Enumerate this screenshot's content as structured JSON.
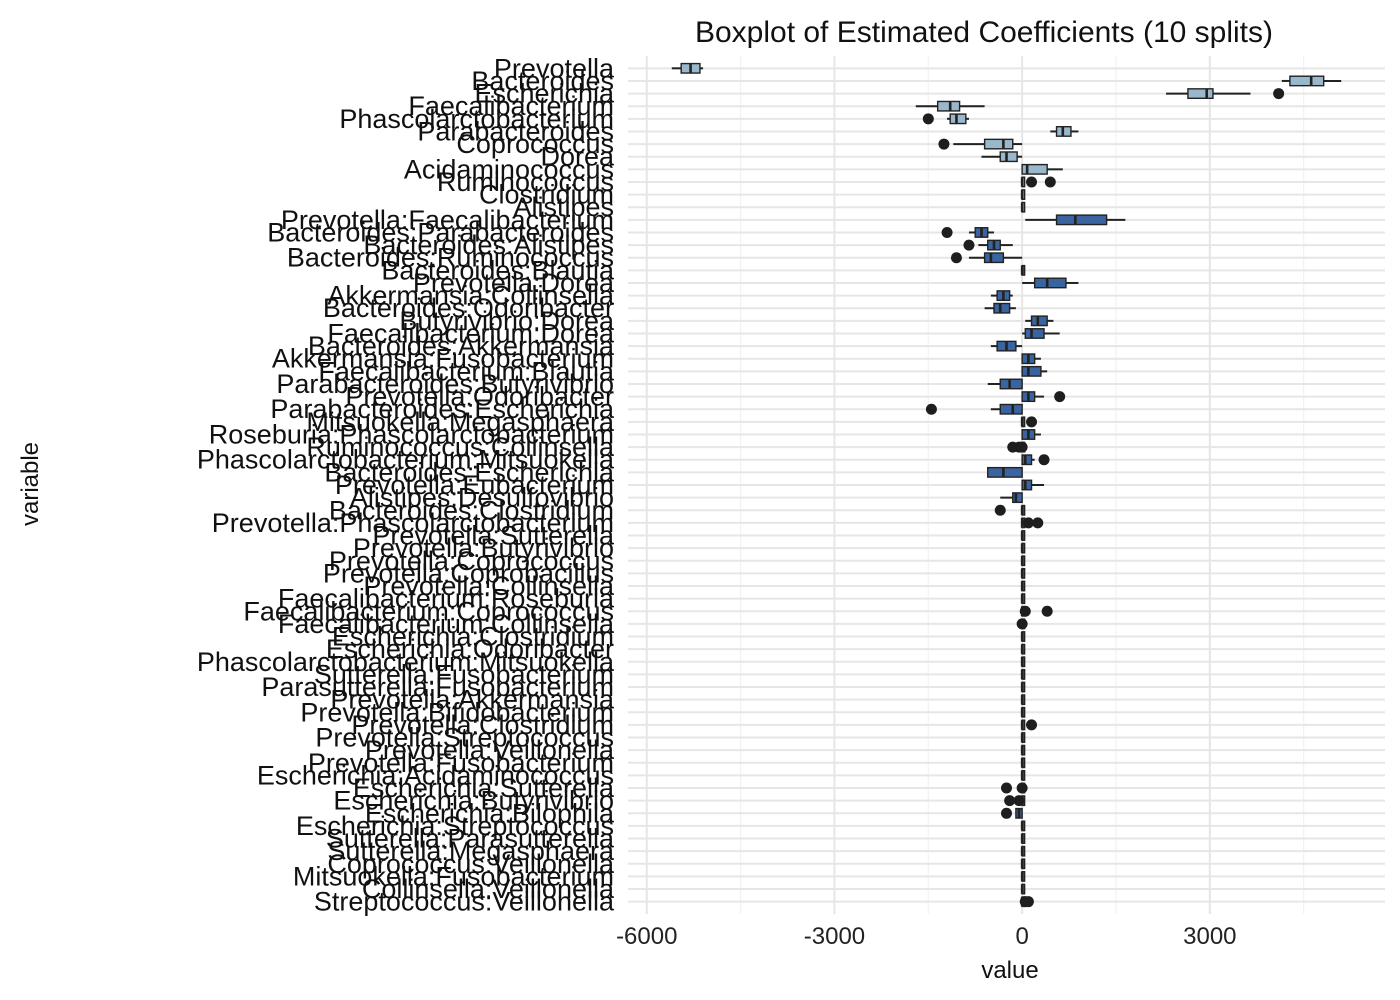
{
  "chart_data": {
    "type": "boxplot",
    "orientation": "horizontal",
    "title": "Boxplot of Estimated Coefficients (10 splits)",
    "xlabel": "value",
    "ylabel": "variable",
    "xlim": [
      -6300,
      5800
    ],
    "xticks": [
      -6000,
      -3000,
      0,
      3000
    ],
    "xtick_labels": [
      "-6000",
      "-3000",
      "0",
      "3000"
    ],
    "grid": true,
    "legend": "none",
    "colors": {
      "dark_box": "#3a64a0",
      "light_box": "#9ab8cc",
      "outline": "#222222"
    },
    "series": [
      {
        "name": "Prevotella",
        "q1": -5450,
        "median": -5300,
        "q3": -5150,
        "whisker_low": -5600,
        "whisker_high": -5100,
        "outliers": [],
        "fill": "light"
      },
      {
        "name": "Bacteroides",
        "q1": 4280,
        "median": 4620,
        "q3": 4820,
        "whisker_low": 4150,
        "whisker_high": 5100,
        "outliers": [],
        "fill": "light"
      },
      {
        "name": "Escherichia",
        "q1": 2650,
        "median": 2950,
        "q3": 3050,
        "whisker_low": 2300,
        "whisker_high": 3650,
        "outliers": [
          4100
        ],
        "fill": "light"
      },
      {
        "name": "Faecalibacterium",
        "q1": -1350,
        "median": -1150,
        "q3": -1000,
        "whisker_low": -1700,
        "whisker_high": -600,
        "outliers": [],
        "fill": "light"
      },
      {
        "name": "Phascolarctobacterium",
        "q1": -1150,
        "median": -1050,
        "q3": -900,
        "whisker_low": -1200,
        "whisker_high": -850,
        "outliers": [
          -1500
        ],
        "fill": "light"
      },
      {
        "name": "Parabacteroides",
        "q1": 550,
        "median": 650,
        "q3": 780,
        "whisker_low": 450,
        "whisker_high": 900,
        "outliers": [],
        "fill": "light"
      },
      {
        "name": "Coprococcus",
        "q1": -600,
        "median": -300,
        "q3": -150,
        "whisker_low": -1100,
        "whisker_high": 0,
        "outliers": [
          -1250
        ],
        "fill": "light"
      },
      {
        "name": "Dorea",
        "q1": -350,
        "median": -250,
        "q3": -80,
        "whisker_low": -650,
        "whisker_high": 0,
        "outliers": [],
        "fill": "light"
      },
      {
        "name": "Acidaminococcus",
        "q1": 0,
        "median": 80,
        "q3": 400,
        "whisker_low": 0,
        "whisker_high": 650,
        "outliers": [],
        "fill": "light"
      },
      {
        "name": "Ruminococcus",
        "q1": 0,
        "median": 0,
        "q3": 0,
        "whisker_low": 0,
        "whisker_high": 0,
        "outliers": [
          150,
          450
        ],
        "fill": "light"
      },
      {
        "name": "Clostridium",
        "q1": 0,
        "median": 0,
        "q3": 0,
        "whisker_low": 0,
        "whisker_high": 0,
        "outliers": [],
        "fill": "light"
      },
      {
        "name": "Alistipes",
        "q1": 0,
        "median": 0,
        "q3": 0,
        "whisker_low": 0,
        "whisker_high": 0,
        "outliers": [],
        "fill": "light"
      },
      {
        "name": "Prevotella:Faecalibacterium",
        "q1": 550,
        "median": 850,
        "q3": 1350,
        "whisker_low": 50,
        "whisker_high": 1650,
        "outliers": [],
        "fill": "dark"
      },
      {
        "name": "Bacteroides:Parabacteroides",
        "q1": -750,
        "median": -650,
        "q3": -550,
        "whisker_low": -850,
        "whisker_high": -450,
        "outliers": [
          -1200
        ],
        "fill": "dark"
      },
      {
        "name": "Bacteroides:Alistipes",
        "q1": -550,
        "median": -450,
        "q3": -350,
        "whisker_low": -700,
        "whisker_high": -150,
        "outliers": [
          -850
        ],
        "fill": "dark"
      },
      {
        "name": "Bacteroides:Ruminococcus",
        "q1": -600,
        "median": -500,
        "q3": -300,
        "whisker_low": -850,
        "whisker_high": 0,
        "outliers": [
          -1050
        ],
        "fill": "dark"
      },
      {
        "name": "Bacteroides:Blautia",
        "q1": 0,
        "median": 0,
        "q3": 0,
        "whisker_low": 0,
        "whisker_high": 0,
        "outliers": [],
        "fill": "dark"
      },
      {
        "name": "Prevotella:Dorea",
        "q1": 200,
        "median": 400,
        "q3": 700,
        "whisker_low": 0,
        "whisker_high": 900,
        "outliers": [],
        "fill": "dark"
      },
      {
        "name": "Akkermansia:Collinsella",
        "q1": -400,
        "median": -300,
        "q3": -200,
        "whisker_low": -500,
        "whisker_high": -150,
        "outliers": [],
        "fill": "dark"
      },
      {
        "name": "Bacteroides:Odoribacter",
        "q1": -450,
        "median": -350,
        "q3": -200,
        "whisker_low": -600,
        "whisker_high": -100,
        "outliers": [],
        "fill": "dark"
      },
      {
        "name": "Butyrivibrio:Dorea",
        "q1": 150,
        "median": 250,
        "q3": 400,
        "whisker_low": 50,
        "whisker_high": 500,
        "outliers": [],
        "fill": "dark"
      },
      {
        "name": "Faecalibacterium:Dorea",
        "q1": 50,
        "median": 150,
        "q3": 350,
        "whisker_low": 0,
        "whisker_high": 600,
        "outliers": [],
        "fill": "dark"
      },
      {
        "name": "Bacteroides:Akkermansia",
        "q1": -400,
        "median": -250,
        "q3": -100,
        "whisker_low": -500,
        "whisker_high": 0,
        "outliers": [],
        "fill": "dark"
      },
      {
        "name": "Akkermansia:Fusobacterium",
        "q1": 0,
        "median": 100,
        "q3": 200,
        "whisker_low": 0,
        "whisker_high": 300,
        "outliers": [],
        "fill": "dark"
      },
      {
        "name": "Faecalibacterium:Blautia",
        "q1": 0,
        "median": 100,
        "q3": 300,
        "whisker_low": 0,
        "whisker_high": 400,
        "outliers": [],
        "fill": "dark"
      },
      {
        "name": "Parabacteroides:Butyrivibrio",
        "q1": -350,
        "median": -200,
        "q3": 0,
        "whisker_low": -550,
        "whisker_high": 0,
        "outliers": [],
        "fill": "dark"
      },
      {
        "name": "Prevotella:Odoribacter",
        "q1": 0,
        "median": 100,
        "q3": 200,
        "whisker_low": 0,
        "whisker_high": 350,
        "outliers": [
          600
        ],
        "fill": "dark"
      },
      {
        "name": "Parabacteroides:Escherichia",
        "q1": -350,
        "median": -150,
        "q3": 0,
        "whisker_low": -500,
        "whisker_high": 0,
        "outliers": [
          -1450
        ],
        "fill": "dark"
      },
      {
        "name": "Mitsuokella:Megasphaera",
        "q1": 0,
        "median": 0,
        "q3": 0,
        "whisker_low": 0,
        "whisker_high": 0,
        "outliers": [
          150
        ],
        "fill": "dark"
      },
      {
        "name": "Roseburia:Phascolarctobacterium",
        "q1": 0,
        "median": 100,
        "q3": 200,
        "whisker_low": 0,
        "whisker_high": 300,
        "outliers": [],
        "fill": "dark"
      },
      {
        "name": "Ruminococcus:Collinsella",
        "q1": 0,
        "median": 0,
        "q3": 0,
        "whisker_low": 0,
        "whisker_high": 0,
        "outliers": [
          -150,
          -50,
          0
        ],
        "fill": "dark"
      },
      {
        "name": "Phascolarctobacterium:Mitsuokella",
        "q1": 0,
        "median": 50,
        "q3": 150,
        "whisker_low": 0,
        "whisker_high": 200,
        "outliers": [
          350
        ],
        "fill": "dark"
      },
      {
        "name": "Bacteroides:Escherichia",
        "q1": -550,
        "median": -300,
        "q3": 0,
        "whisker_low": -550,
        "whisker_high": 0,
        "outliers": [],
        "fill": "dark"
      },
      {
        "name": "Prevotella:Eubacterium",
        "q1": 0,
        "median": 50,
        "q3": 150,
        "whisker_low": 0,
        "whisker_high": 350,
        "outliers": [],
        "fill": "dark"
      },
      {
        "name": "Alistipes:Desulfovibrio",
        "q1": -150,
        "median": -100,
        "q3": 0,
        "whisker_low": -350,
        "whisker_high": 0,
        "outliers": [],
        "fill": "dark"
      },
      {
        "name": "Bacteroides:Clostridium",
        "q1": 0,
        "median": 0,
        "q3": 0,
        "whisker_low": 0,
        "whisker_high": 0,
        "outliers": [
          -350
        ],
        "fill": "dark"
      },
      {
        "name": "Prevotella:Phascolarctobacterium",
        "q1": 0,
        "median": 0,
        "q3": 0,
        "whisker_low": 0,
        "whisker_high": 0,
        "outliers": [
          100,
          250
        ],
        "fill": "dark"
      },
      {
        "name": "Prevotella:Sutterella",
        "q1": 0,
        "median": 0,
        "q3": 0,
        "whisker_low": 0,
        "whisker_high": 0,
        "outliers": [],
        "fill": "dark"
      },
      {
        "name": "Prevotella:Butyrivibrio",
        "q1": 0,
        "median": 0,
        "q3": 0,
        "whisker_low": 0,
        "whisker_high": 0,
        "outliers": [],
        "fill": "dark"
      },
      {
        "name": "Prevotella:Coprococcus",
        "q1": 0,
        "median": 0,
        "q3": 0,
        "whisker_low": 0,
        "whisker_high": 0,
        "outliers": [],
        "fill": "dark"
      },
      {
        "name": "Prevotella:Coprobacillus",
        "q1": 0,
        "median": 0,
        "q3": 0,
        "whisker_low": 0,
        "whisker_high": 0,
        "outliers": [],
        "fill": "dark"
      },
      {
        "name": "Prevotella:Collinsella",
        "q1": 0,
        "median": 0,
        "q3": 0,
        "whisker_low": 0,
        "whisker_high": 0,
        "outliers": [],
        "fill": "dark"
      },
      {
        "name": "Faecalibacterium:Roseburia",
        "q1": 0,
        "median": 0,
        "q3": 0,
        "whisker_low": 0,
        "whisker_high": 0,
        "outliers": [],
        "fill": "dark"
      },
      {
        "name": "Faecalibacterium:Coprococcus",
        "q1": 0,
        "median": 0,
        "q3": 0,
        "whisker_low": 0,
        "whisker_high": 0,
        "outliers": [
          50,
          400
        ],
        "fill": "dark"
      },
      {
        "name": "Faecalibacterium:Collinsella",
        "q1": 0,
        "median": 0,
        "q3": 0,
        "whisker_low": 0,
        "whisker_high": 0,
        "outliers": [
          0
        ],
        "fill": "dark"
      },
      {
        "name": "Escherichia:Clostridium",
        "q1": 0,
        "median": 0,
        "q3": 0,
        "whisker_low": 0,
        "whisker_high": 0,
        "outliers": [],
        "fill": "dark"
      },
      {
        "name": "Escherichia:Odoribacter",
        "q1": 0,
        "median": 0,
        "q3": 0,
        "whisker_low": 0,
        "whisker_high": 0,
        "outliers": [],
        "fill": "dark"
      },
      {
        "name": "Phascolarctobacterium:Mitsuokella",
        "q1": 0,
        "median": 0,
        "q3": 0,
        "whisker_low": 0,
        "whisker_high": 0,
        "outliers": [],
        "fill": "dark"
      },
      {
        "name": "Sutterella:Fusobacterium",
        "q1": 0,
        "median": 0,
        "q3": 0,
        "whisker_low": 0,
        "whisker_high": 0,
        "outliers": [],
        "fill": "dark"
      },
      {
        "name": "Parasutterella:Fusobacterium",
        "q1": 0,
        "median": 0,
        "q3": 0,
        "whisker_low": 0,
        "whisker_high": 0,
        "outliers": [],
        "fill": "dark"
      },
      {
        "name": "Prevotella:Akkermansia",
        "q1": 0,
        "median": 0,
        "q3": 0,
        "whisker_low": 0,
        "whisker_high": 0,
        "outliers": [],
        "fill": "dark"
      },
      {
        "name": "Prevotella:Bifidobacterium",
        "q1": 0,
        "median": 0,
        "q3": 0,
        "whisker_low": 0,
        "whisker_high": 0,
        "outliers": [],
        "fill": "dark"
      },
      {
        "name": "Prevotella:Clostridium",
        "q1": 0,
        "median": 0,
        "q3": 0,
        "whisker_low": 0,
        "whisker_high": 0,
        "outliers": [
          150
        ],
        "fill": "dark"
      },
      {
        "name": "Prevotella:Streptococcus",
        "q1": 0,
        "median": 0,
        "q3": 0,
        "whisker_low": 0,
        "whisker_high": 0,
        "outliers": [],
        "fill": "dark"
      },
      {
        "name": "Prevotella:Veillonella",
        "q1": 0,
        "median": 0,
        "q3": 0,
        "whisker_low": 0,
        "whisker_high": 0,
        "outliers": [],
        "fill": "dark"
      },
      {
        "name": "Prevotella:Fusobacterium",
        "q1": 0,
        "median": 0,
        "q3": 0,
        "whisker_low": 0,
        "whisker_high": 0,
        "outliers": [],
        "fill": "dark"
      },
      {
        "name": "Escherichia:Acidaminococcus",
        "q1": 0,
        "median": 0,
        "q3": 0,
        "whisker_low": 0,
        "whisker_high": 0,
        "outliers": [],
        "fill": "dark"
      },
      {
        "name": "Escherichia:Sutterella",
        "q1": 0,
        "median": 0,
        "q3": 0,
        "whisker_low": 0,
        "whisker_high": 0,
        "outliers": [
          -250,
          0
        ],
        "fill": "dark"
      },
      {
        "name": "Escherichia:Butyrivibrio",
        "q1": 0,
        "median": 0,
        "q3": 0,
        "whisker_low": 0,
        "whisker_high": 0,
        "outliers": [
          -200,
          -50
        ],
        "fill": "dark"
      },
      {
        "name": "Escherichia:Bilophila",
        "q1": -100,
        "median": -50,
        "q3": 0,
        "whisker_low": -100,
        "whisker_high": 0,
        "outliers": [
          -250
        ],
        "fill": "dark"
      },
      {
        "name": "Escherichia:Streptococcus",
        "q1": 0,
        "median": 0,
        "q3": 0,
        "whisker_low": 0,
        "whisker_high": 0,
        "outliers": [],
        "fill": "dark"
      },
      {
        "name": "Sutterella:Parasutterella",
        "q1": 0,
        "median": 0,
        "q3": 0,
        "whisker_low": 0,
        "whisker_high": 0,
        "outliers": [],
        "fill": "dark"
      },
      {
        "name": "Sutterella:Megasphaera",
        "q1": 0,
        "median": 0,
        "q3": 0,
        "whisker_low": 0,
        "whisker_high": 0,
        "outliers": [],
        "fill": "dark"
      },
      {
        "name": "Coprococcus:Veillonella",
        "q1": 0,
        "median": 0,
        "q3": 0,
        "whisker_low": 0,
        "whisker_high": 0,
        "outliers": [],
        "fill": "dark"
      },
      {
        "name": "Mitsuokella:Fusobacterium",
        "q1": 0,
        "median": 0,
        "q3": 0,
        "whisker_low": 0,
        "whisker_high": 0,
        "outliers": [],
        "fill": "dark"
      },
      {
        "name": "Collinsella:Veillonella",
        "q1": 0,
        "median": 0,
        "q3": 0,
        "whisker_low": 0,
        "whisker_high": 0,
        "outliers": [],
        "fill": "dark"
      },
      {
        "name": "Streptococcus:Veillonella",
        "q1": 0,
        "median": 0,
        "q3": 0,
        "whisker_low": 0,
        "whisker_high": 0,
        "outliers": [
          50,
          100
        ],
        "fill": "dark"
      }
    ]
  }
}
